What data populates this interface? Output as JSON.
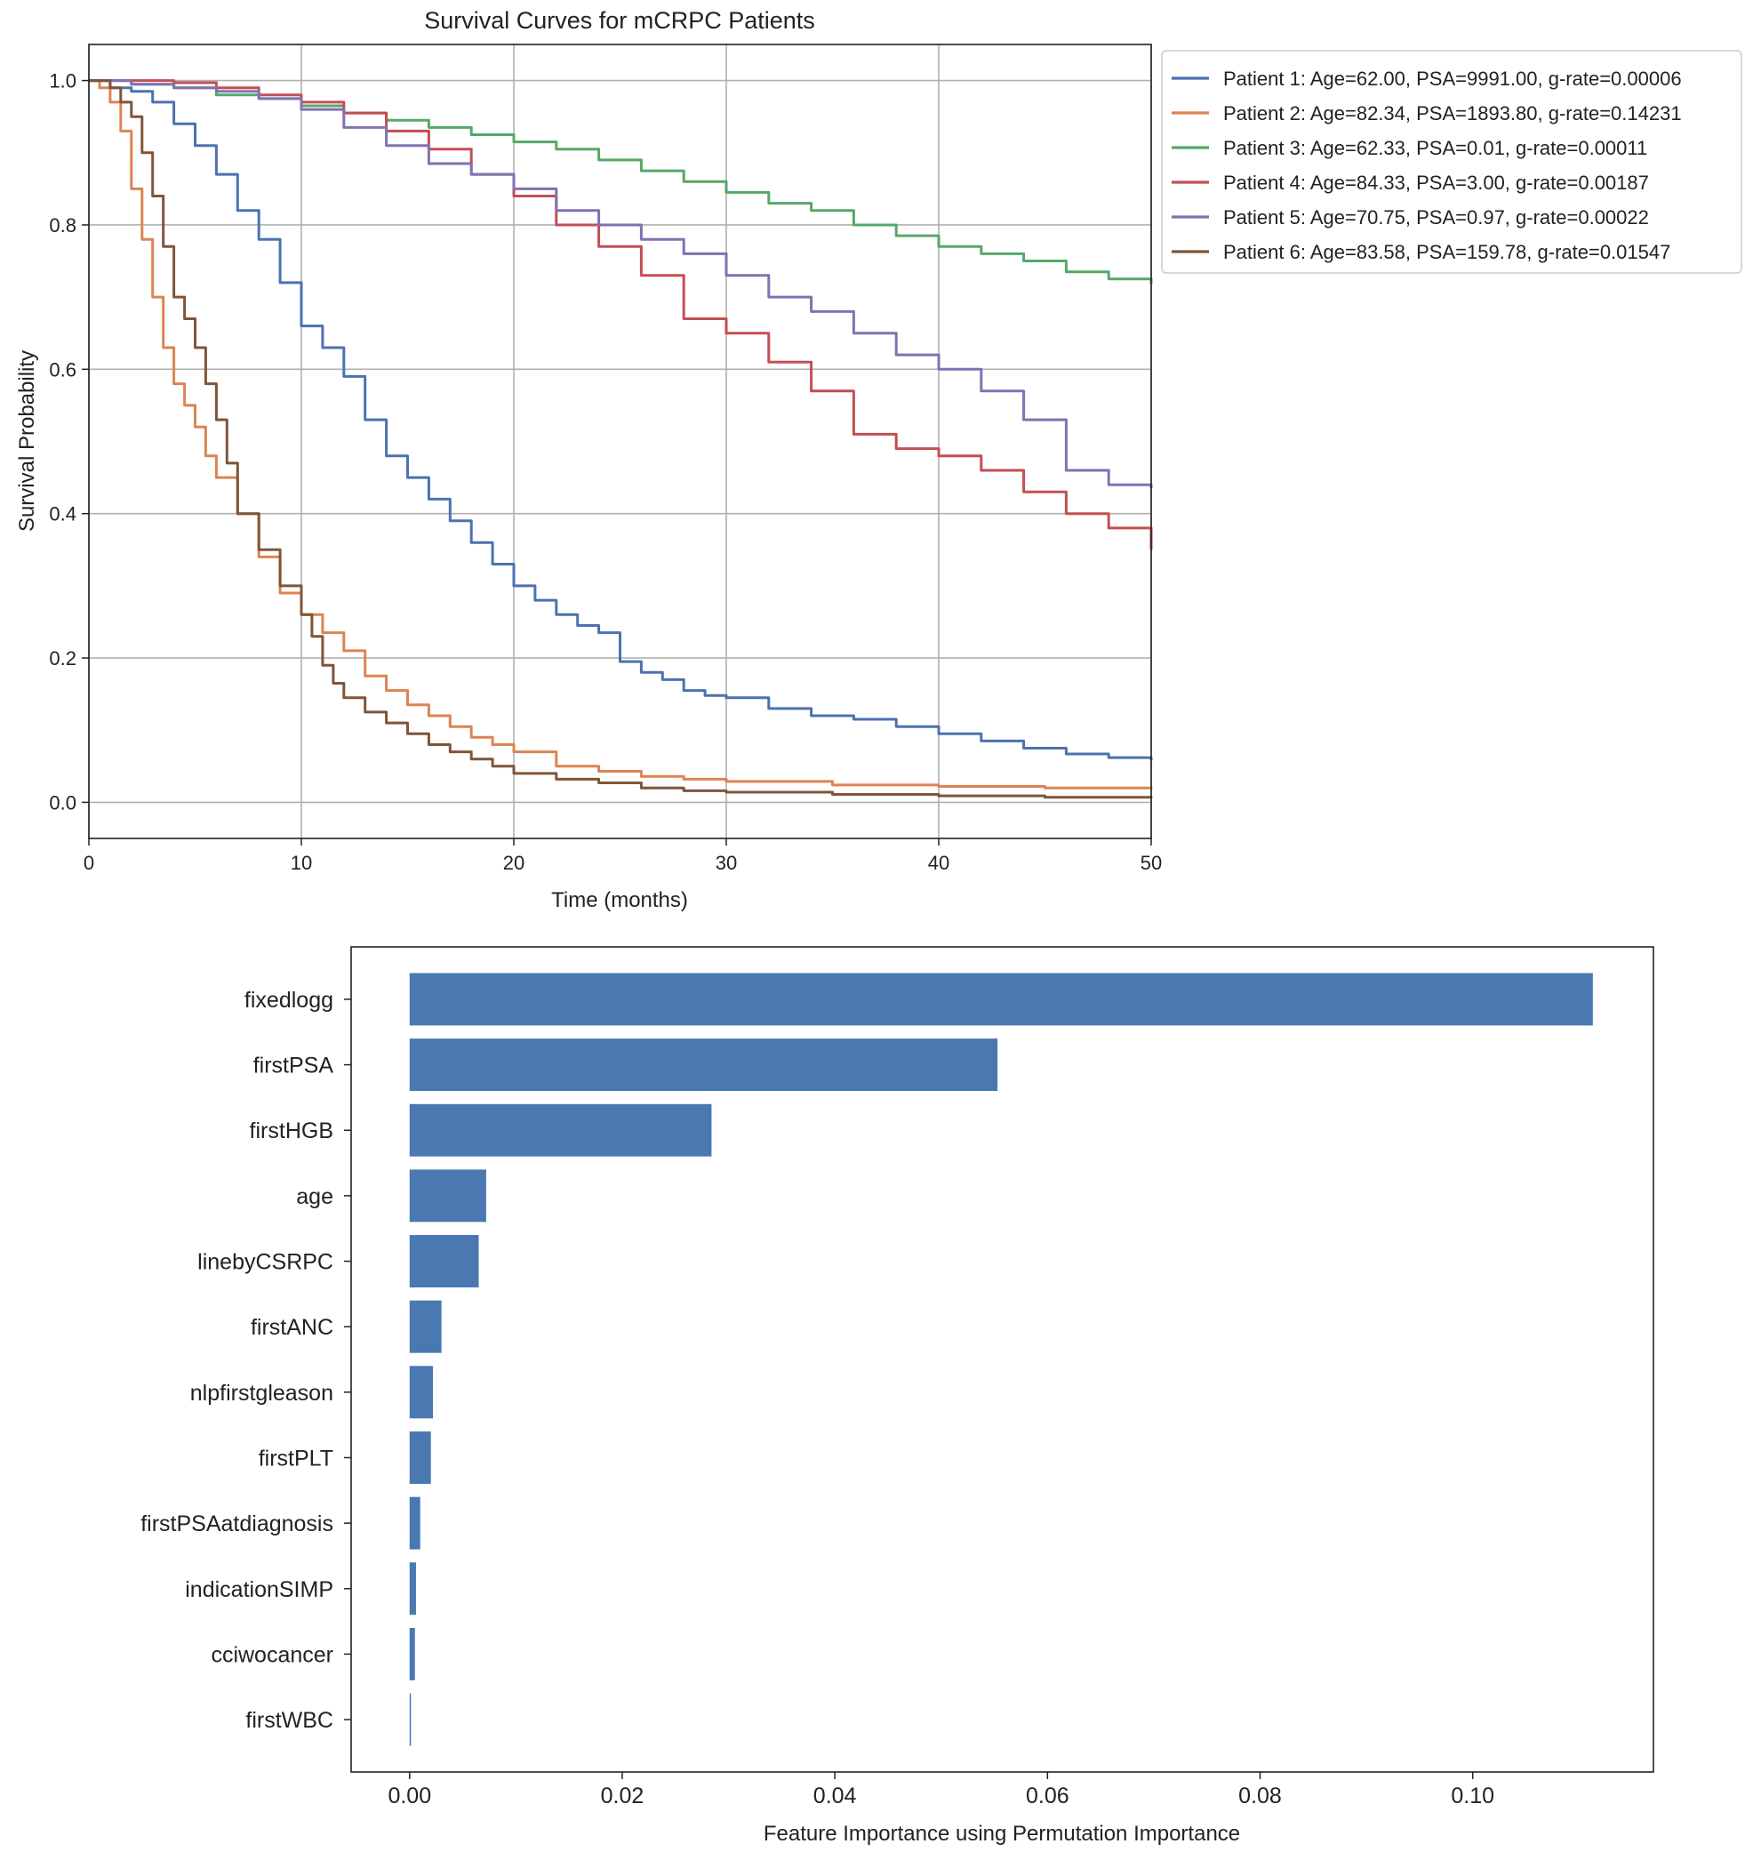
{
  "figure": {
    "charts": [
      "survival",
      "importance"
    ]
  },
  "chart_data": [
    {
      "type": "line",
      "title": "Survival Curves for mCRPC Patients",
      "xlabel": "Time (months)",
      "ylabel": "Survival Probability",
      "xlim": [
        0,
        50
      ],
      "ylim": [
        -0.05,
        1.05
      ],
      "xticks": [
        0,
        10,
        20,
        30,
        40,
        50
      ],
      "yticks": [
        0.0,
        0.2,
        0.4,
        0.6,
        0.8,
        1.0
      ],
      "xtick_labels": [
        "0",
        "10",
        "20",
        "30",
        "40",
        "50"
      ],
      "ytick_labels": [
        "0.0",
        "0.2",
        "0.4",
        "0.6",
        "0.8",
        "1.0"
      ],
      "grid": true,
      "legend_position": "outside upper right",
      "step": true,
      "series": [
        {
          "name": "Patient 1: Age=62.00, PSA=9991.00, g-rate=0.00006",
          "color": "#4c72b0",
          "x": [
            0,
            1,
            2,
            3,
            4,
            5,
            6,
            7,
            8,
            9,
            10,
            11,
            12,
            13,
            14,
            15,
            16,
            17,
            18,
            19,
            20,
            21,
            22,
            23,
            24,
            25,
            26,
            27,
            28,
            29,
            30,
            32,
            34,
            36,
            38,
            40,
            42,
            44,
            46,
            48,
            50
          ],
          "y": [
            1.0,
            0.99,
            0.985,
            0.97,
            0.94,
            0.91,
            0.87,
            0.82,
            0.78,
            0.72,
            0.66,
            0.63,
            0.59,
            0.53,
            0.48,
            0.45,
            0.42,
            0.39,
            0.36,
            0.33,
            0.3,
            0.28,
            0.26,
            0.245,
            0.235,
            0.195,
            0.18,
            0.17,
            0.155,
            0.148,
            0.145,
            0.13,
            0.12,
            0.115,
            0.105,
            0.095,
            0.085,
            0.075,
            0.067,
            0.062,
            0.058
          ]
        },
        {
          "name": "Patient 2: Age=82.34, PSA=1893.80, g-rate=0.14231",
          "color": "#dd8452",
          "x": [
            0,
            0.5,
            1,
            1.5,
            2,
            2.5,
            3,
            3.5,
            4,
            4.5,
            5,
            5.5,
            6,
            7,
            8,
            9,
            10,
            11,
            12,
            13,
            14,
            15,
            16,
            17,
            18,
            19,
            20,
            22,
            24,
            26,
            28,
            30,
            35,
            40,
            45,
            50
          ],
          "y": [
            1.0,
            0.99,
            0.97,
            0.93,
            0.85,
            0.78,
            0.7,
            0.63,
            0.58,
            0.55,
            0.52,
            0.48,
            0.45,
            0.4,
            0.34,
            0.29,
            0.26,
            0.235,
            0.21,
            0.175,
            0.155,
            0.135,
            0.12,
            0.105,
            0.09,
            0.08,
            0.07,
            0.05,
            0.043,
            0.036,
            0.032,
            0.029,
            0.024,
            0.022,
            0.02,
            0.018
          ]
        },
        {
          "name": "Patient 3: Age=62.33, PSA=0.01, g-rate=0.00011",
          "color": "#55a868",
          "x": [
            0,
            2,
            4,
            6,
            8,
            10,
            12,
            14,
            16,
            18,
            20,
            22,
            24,
            26,
            28,
            30,
            32,
            34,
            36,
            38,
            40,
            42,
            44,
            46,
            48,
            50
          ],
          "y": [
            1.0,
            0.995,
            0.99,
            0.98,
            0.975,
            0.965,
            0.955,
            0.945,
            0.935,
            0.925,
            0.915,
            0.905,
            0.89,
            0.875,
            0.86,
            0.845,
            0.83,
            0.82,
            0.8,
            0.785,
            0.77,
            0.76,
            0.75,
            0.735,
            0.725,
            0.718
          ]
        },
        {
          "name": "Patient 4: Age=84.33, PSA=3.00, g-rate=0.00187",
          "color": "#c44e52",
          "x": [
            0,
            2,
            4,
            6,
            8,
            10,
            12,
            14,
            16,
            18,
            20,
            22,
            24,
            26,
            28,
            30,
            32,
            34,
            36,
            38,
            40,
            42,
            44,
            46,
            48,
            50
          ],
          "y": [
            1.0,
            1.0,
            0.997,
            0.99,
            0.98,
            0.97,
            0.955,
            0.93,
            0.905,
            0.87,
            0.84,
            0.8,
            0.77,
            0.73,
            0.67,
            0.65,
            0.61,
            0.57,
            0.51,
            0.49,
            0.48,
            0.46,
            0.43,
            0.4,
            0.38,
            0.35
          ]
        },
        {
          "name": "Patient 5: Age=70.75, PSA=0.97, g-rate=0.00022",
          "color": "#8172b3",
          "x": [
            0,
            2,
            4,
            6,
            8,
            10,
            12,
            14,
            16,
            18,
            20,
            22,
            24,
            26,
            28,
            30,
            32,
            34,
            36,
            38,
            40,
            42,
            44,
            46,
            48,
            50
          ],
          "y": [
            1.0,
            0.995,
            0.99,
            0.985,
            0.975,
            0.96,
            0.935,
            0.91,
            0.885,
            0.87,
            0.85,
            0.82,
            0.8,
            0.78,
            0.76,
            0.73,
            0.7,
            0.68,
            0.65,
            0.62,
            0.6,
            0.57,
            0.53,
            0.46,
            0.44,
            0.435
          ]
        },
        {
          "name": "Patient 6: Age=83.58, PSA=159.78, g-rate=0.01547",
          "color": "#7f5539",
          "x": [
            0,
            1,
            1.5,
            2,
            2.5,
            3,
            3.5,
            4,
            4.5,
            5,
            5.5,
            6,
            6.5,
            7,
            8,
            9,
            10,
            10.5,
            11,
            11.5,
            12,
            13,
            14,
            15,
            16,
            17,
            18,
            19,
            20,
            22,
            24,
            26,
            28,
            30,
            35,
            40,
            45,
            50
          ],
          "y": [
            1.0,
            0.99,
            0.97,
            0.95,
            0.9,
            0.84,
            0.77,
            0.7,
            0.67,
            0.63,
            0.58,
            0.53,
            0.47,
            0.4,
            0.35,
            0.3,
            0.26,
            0.23,
            0.19,
            0.165,
            0.145,
            0.125,
            0.11,
            0.095,
            0.08,
            0.07,
            0.06,
            0.05,
            0.04,
            0.032,
            0.027,
            0.02,
            0.016,
            0.014,
            0.011,
            0.009,
            0.007,
            0.006
          ]
        }
      ]
    },
    {
      "type": "bar",
      "orientation": "horizontal",
      "xlabel": "Feature Importance using Permutation Importance",
      "xlim": [
        -0.0055,
        0.117
      ],
      "xticks": [
        0.0,
        0.02,
        0.04,
        0.06,
        0.08,
        0.1
      ],
      "xtick_labels": [
        "0.00",
        "0.02",
        "0.04",
        "0.06",
        "0.08",
        "0.10"
      ],
      "grid": false,
      "color": "#4a78b0",
      "categories": [
        "fixedlogg",
        "firstPSA",
        "firstHGB",
        "age",
        "linebyCSRPC",
        "firstANC",
        "nlpfirstgleason",
        "firstPLT",
        "firstPSAatdiagnosis",
        "indicationSIMP",
        "cciwocancer",
        "firstWBC"
      ],
      "values": [
        0.1113,
        0.0553,
        0.0284,
        0.0072,
        0.0065,
        0.003,
        0.0022,
        0.002,
        0.001,
        0.0006,
        0.0005,
        0.0001
      ]
    }
  ]
}
